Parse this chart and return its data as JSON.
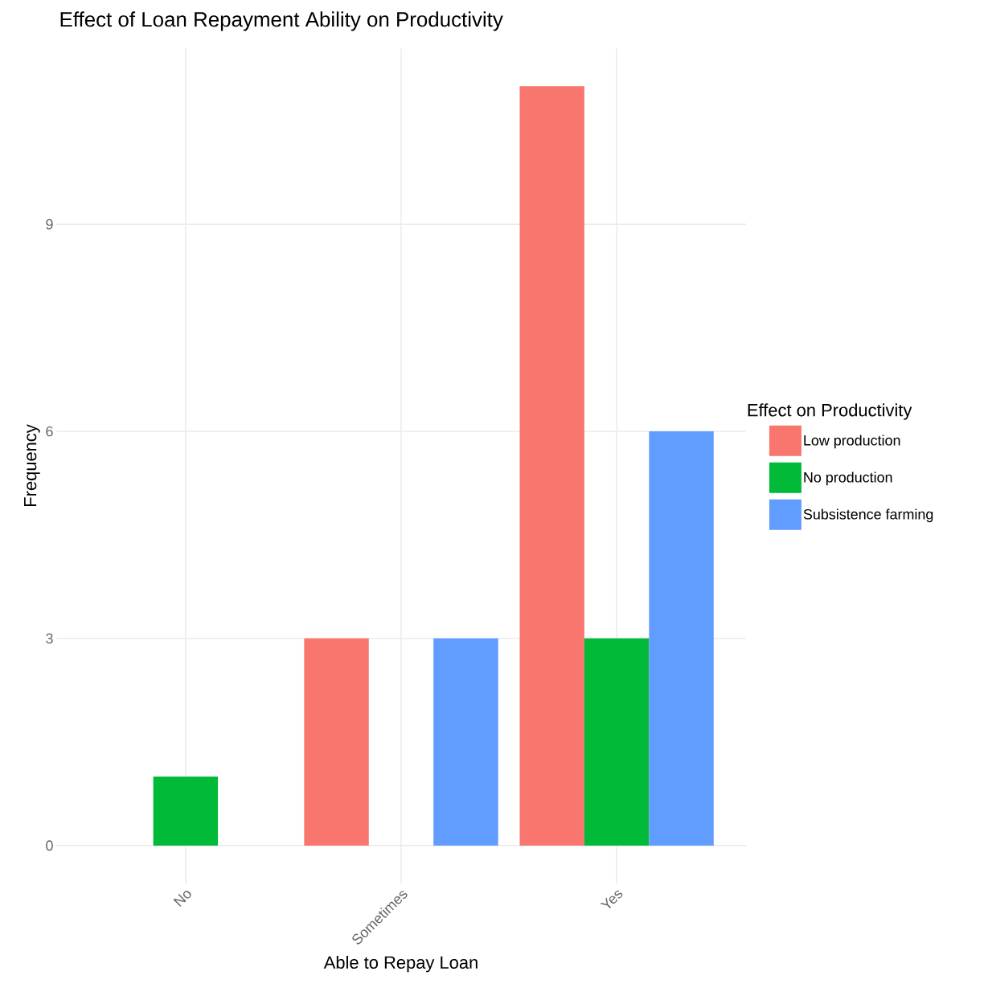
{
  "chart_data": {
    "type": "bar",
    "title": "Effect of Loan Repayment Ability on Productivity",
    "xlabel": "Able to Repay Loan",
    "ylabel": "Frequency",
    "legend_title": "Effect on Productivity",
    "categories": [
      "No",
      "Sometimes",
      "Yes"
    ],
    "series": [
      {
        "name": "Low production",
        "color": "#f8766d",
        "values": [
          null,
          3,
          11
        ]
      },
      {
        "name": "No production",
        "color": "#00ba38",
        "values": [
          1,
          null,
          3
        ]
      },
      {
        "name": "Subsistence farming",
        "color": "#619cff",
        "values": [
          null,
          3,
          6
        ]
      }
    ],
    "ylim": [
      -0.55,
      11.55
    ],
    "yticks": [
      0,
      3,
      6,
      9
    ],
    "grid": true,
    "legend": "right"
  }
}
